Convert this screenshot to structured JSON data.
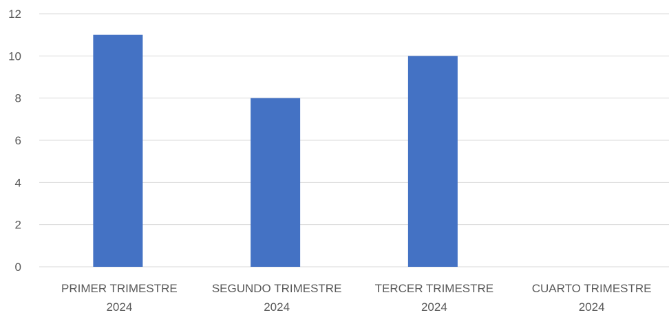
{
  "chart_data": {
    "type": "bar",
    "categories": [
      [
        "PRIMER TRIMESTRE",
        "2024"
      ],
      [
        "SEGUNDO TRIMESTRE",
        "2024"
      ],
      [
        "TERCER TRIMESTRE",
        "2024"
      ],
      [
        "CUARTO TRIMESTRE",
        "2024"
      ]
    ],
    "values": [
      11,
      8,
      10,
      0
    ],
    "ylim": [
      0,
      12
    ],
    "yticks": [
      0,
      2,
      4,
      6,
      8,
      10,
      12
    ],
    "grid": true,
    "legend": "none"
  },
  "colors": {
    "bar": "#4472C4",
    "grid": "#D9D9D9",
    "text": "#595959"
  }
}
